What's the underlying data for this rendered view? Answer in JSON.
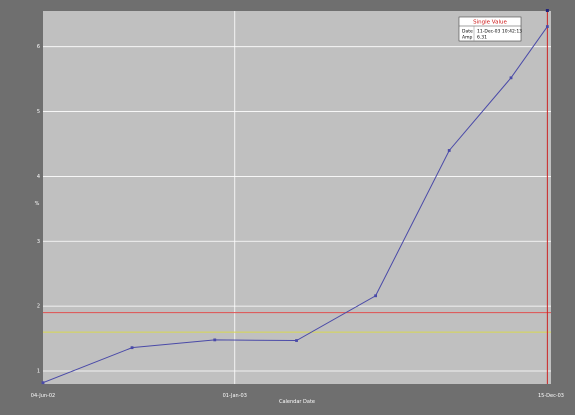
{
  "chart_data": {
    "type": "line",
    "title": "",
    "xlabel": "Calendar Date",
    "ylabel": "%",
    "x_tick_labels": [
      "04-Jun-02",
      "01-Jan-03",
      "15-Dec-03"
    ],
    "y_tick_labels": [
      "1",
      "2",
      "3",
      "4",
      "5",
      "6"
    ],
    "ylim": [
      0.8,
      6.55
    ],
    "xlim": [
      "2002-06-04",
      "2003-12-15"
    ],
    "grid": true,
    "series": [
      {
        "color": "#4a4aa8",
        "points": [
          {
            "x": "2002-06-04",
            "y": 0.82
          },
          {
            "x": "2002-09-10",
            "y": 1.36
          },
          {
            "x": "2002-12-10",
            "y": 1.48
          },
          {
            "x": "2003-03-10",
            "y": 1.47
          },
          {
            "x": "2003-06-05",
            "y": 2.16
          },
          {
            "x": "2003-08-25",
            "y": 4.4
          },
          {
            "x": "2003-11-01",
            "y": 5.52
          },
          {
            "x": "2003-12-11",
            "y": 6.31
          }
        ]
      }
    ],
    "reference_lines": [
      {
        "y": 1.9,
        "color": "#e05050"
      },
      {
        "y": 1.6,
        "color": "#d8d850"
      }
    ],
    "vertical_marker": {
      "x": "2003-12-11",
      "color": "#cc2222"
    },
    "tooltip": {
      "title": "Single Value",
      "rows": [
        {
          "label": "Date",
          "value": "11-Dec-03 10:42:13"
        },
        {
          "label": "Amp",
          "value": "6.31"
        }
      ]
    }
  }
}
